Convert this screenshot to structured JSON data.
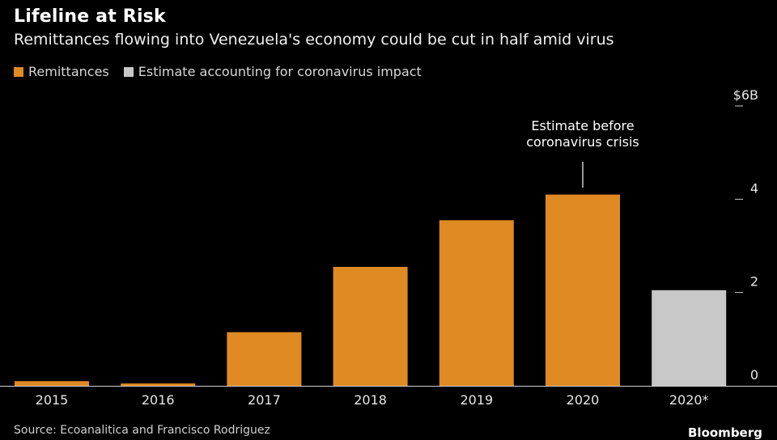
{
  "chart_data": {
    "type": "bar",
    "title": "Lifeline at Risk",
    "subtitle": "Remittances flowing into Venezuela's economy could be cut in half amid virus",
    "categories": [
      "2015",
      "2016",
      "2017",
      "2018",
      "2019",
      "2020",
      "2020*"
    ],
    "values": [
      0.1,
      0.05,
      1.15,
      2.55,
      3.55,
      4.1,
      2.05
    ],
    "bar_series": [
      "remittances",
      "remittances",
      "remittances",
      "remittances",
      "remittances",
      "remittances",
      "estimate"
    ],
    "series": [
      {
        "name": "Remittances",
        "key": "remittances",
        "color": "#E08A24"
      },
      {
        "name": "Estimate accounting for coronavirus impact",
        "key": "estimate",
        "color": "#C8C8C8"
      }
    ],
    "ylim": [
      0,
      6
    ],
    "yticks": [
      {
        "value": 0,
        "label": "0"
      },
      {
        "value": 2,
        "label": "2"
      },
      {
        "value": 4,
        "label": "4"
      },
      {
        "value": 6,
        "label": "$6B"
      }
    ],
    "annotation": {
      "lines": [
        "Estimate before",
        "coronavirus crisis"
      ],
      "category": "2020"
    },
    "xlabel": "",
    "ylabel": ""
  },
  "source": "Source: Ecoanalitica and Francisco Rodriguez",
  "logo": "Bloomberg"
}
